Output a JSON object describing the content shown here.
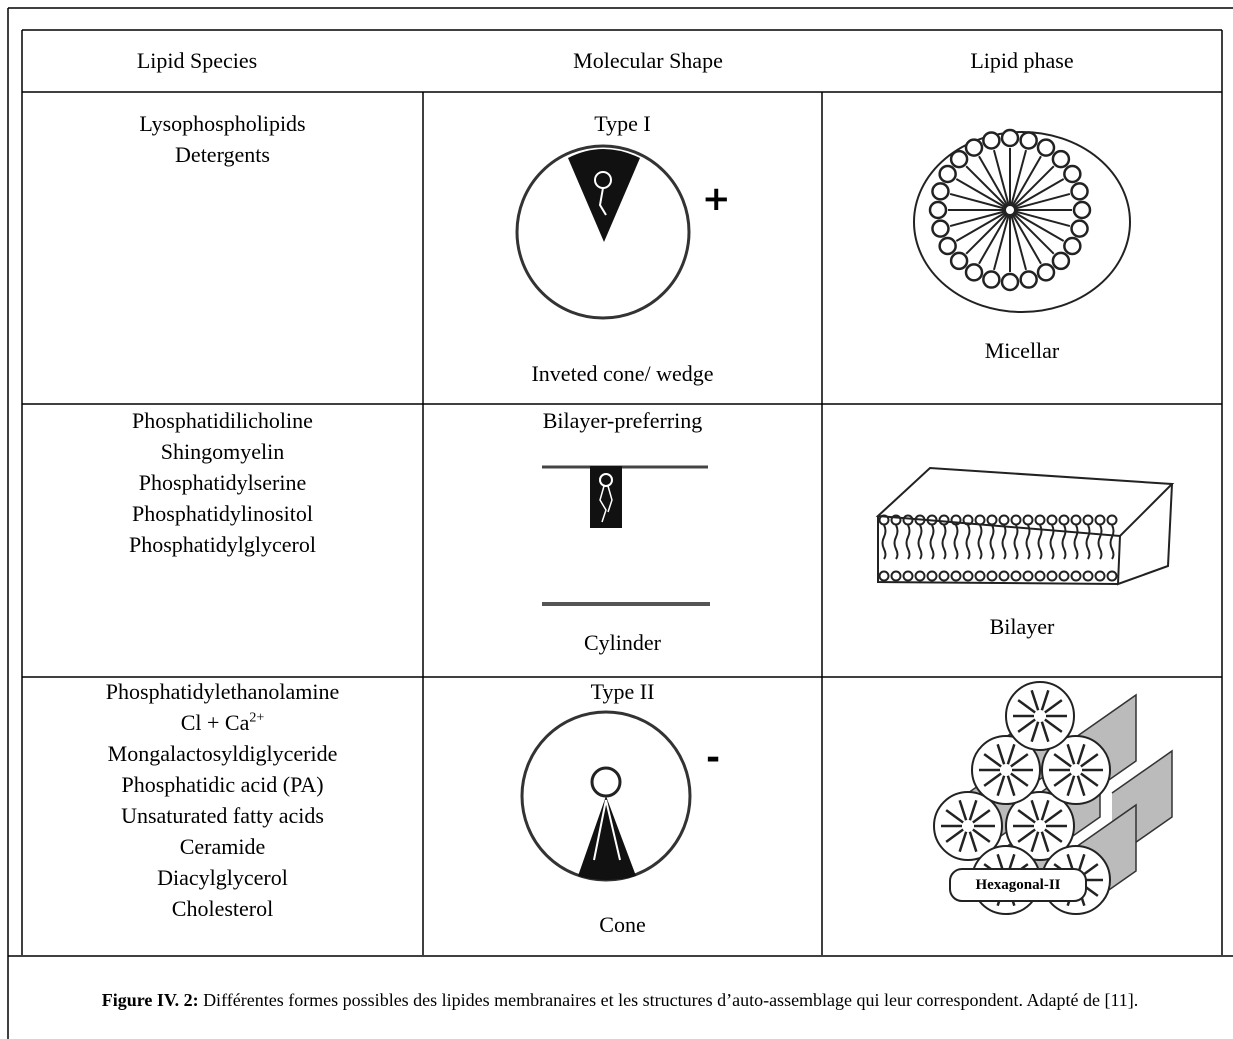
{
  "table": {
    "header": [
      "Lipid Species",
      "Molecular Shape",
      "Lipid phase"
    ],
    "rows": [
      {
        "species": [
          "Lysophospholipids",
          "Detergents"
        ],
        "shape_title": "Type I",
        "charge": "+",
        "shape_label": "Inveted cone/ wedge",
        "phase": "Micellar"
      },
      {
        "species": [
          "Phosphatidilicholine",
          "Shingomyelin",
          "Phosphatidylserine",
          "Phosphatidylinositol",
          "Phosphatidylglycerol"
        ],
        "shape_title": "Bilayer-preferring",
        "shape_label": "Cylinder",
        "phase": "Bilayer"
      },
      {
        "species": [
          "Phosphatidylethanolamine",
          {
            "text": "Cl + Ca",
            "sup": "2+"
          },
          "Mongalactosyldiglyceride",
          "Phosphatidic acid (PA)",
          "Unsaturated fatty acids",
          "Ceramide",
          "Diacylglycerol",
          "Cholesterol"
        ],
        "shape_title": "Type II",
        "charge": "-",
        "shape_label": "Cone",
        "phase_image_label": "Hexagonal-II"
      }
    ]
  },
  "caption": {
    "label": "Figure IV. 2:",
    "text": "Différentes formes possibles des lipides membranaires et les structures d’auto-assemblage qui leur correspondent. Adapté de [11]."
  }
}
